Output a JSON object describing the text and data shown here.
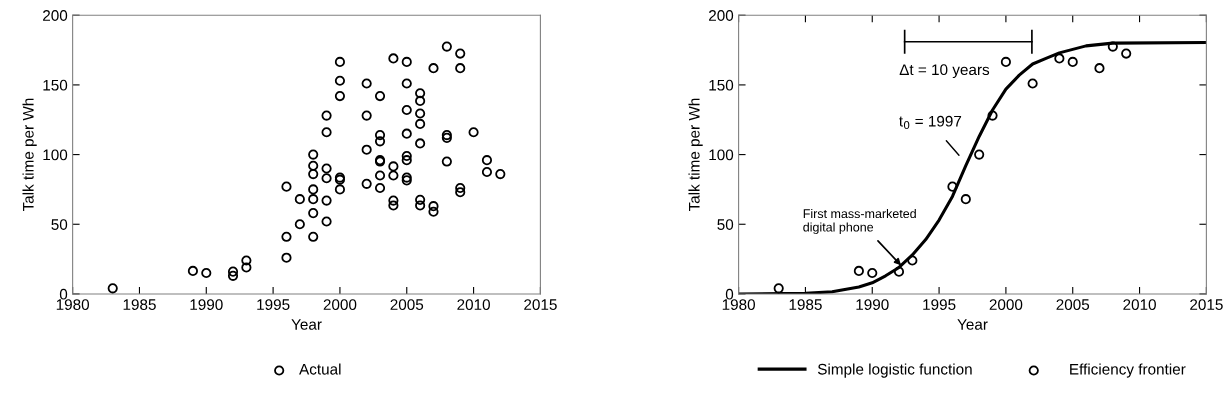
{
  "chart_data": [
    {
      "type": "scatter",
      "xlabel": "Year",
      "ylabel": "Talk time per Wh",
      "xlim": [
        1980,
        2015
      ],
      "ylim": [
        0,
        200
      ],
      "xticks": [
        1980,
        1985,
        1990,
        1995,
        2000,
        2005,
        2010,
        2015
      ],
      "yticks": [
        0,
        50,
        100,
        150,
        200
      ],
      "grid": false,
      "legend": "bottom",
      "marker": "circle",
      "series": [
        {
          "name": "Actual",
          "color": "#000000",
          "x": [
            1983,
            1989,
            1990,
            1992,
            1992,
            1993,
            1993,
            1996,
            1996,
            1996,
            1997,
            1997,
            1998,
            1998,
            1998,
            1998,
            1998,
            1998,
            1998,
            1999,
            1999,
            1999,
            1999,
            1999,
            1999,
            2000,
            2000,
            2000,
            2000,
            2000,
            2000,
            2002,
            2002,
            2002,
            2002,
            2003,
            2003,
            2003,
            2003,
            2003,
            2003,
            2003,
            2004,
            2004,
            2004,
            2004,
            2004,
            2005,
            2005,
            2005,
            2005,
            2005,
            2005,
            2005,
            2005,
            2006,
            2006,
            2006,
            2006,
            2006,
            2006,
            2006,
            2007,
            2007,
            2007,
            2008,
            2008,
            2008,
            2008,
            2009,
            2009,
            2009,
            2009,
            2010,
            2011,
            2011,
            2012
          ],
          "values": [
            4,
            16.5,
            15,
            16,
            13,
            24,
            19,
            77,
            41,
            26,
            68,
            50,
            100,
            92,
            86,
            75,
            68,
            58,
            41,
            128,
            116,
            90,
            83,
            67,
            52,
            166.5,
            153,
            142,
            83.5,
            82,
            75,
            151,
            128,
            103.5,
            79,
            142,
            114,
            109.5,
            96,
            95,
            85,
            76,
            169,
            91.5,
            85,
            67,
            63.5,
            166.5,
            151,
            132,
            115,
            99,
            96,
            83.5,
            81.5,
            144,
            138.5,
            129.5,
            122,
            108,
            67.5,
            63.5,
            162,
            63,
            59,
            177.5,
            114,
            112,
            95,
            172.5,
            162,
            76,
            73,
            116,
            96,
            87.5,
            86
          ]
        }
      ]
    },
    {
      "type": "scatter",
      "xlabel": "Year",
      "ylabel": "Talk time per Wh",
      "xlim": [
        1980,
        2015
      ],
      "ylim": [
        0,
        200
      ],
      "xticks": [
        1980,
        1985,
        1990,
        1995,
        2000,
        2005,
        2010,
        2015
      ],
      "yticks": [
        0,
        50,
        100,
        150,
        200
      ],
      "grid": false,
      "legend": "bottom",
      "annotations": [
        "Δt = 10 years",
        "t$_{0}$ = 1997",
        {
          "text": "First mass-marketed\ndigital phone",
          "x": 1992.3,
          "y": 19
        }
      ],
      "series": [
        {
          "name": "Simple logistic function",
          "type": "line",
          "color": "#000000",
          "line_style": "solid",
          "marker": "none",
          "x": [
            1980,
            1985,
            1987,
            1989,
            1990,
            1991,
            1992,
            1993,
            1994,
            1995,
            1996,
            1997,
            1998,
            1999,
            2000,
            2001,
            2002,
            2003,
            2004,
            2006,
            2008,
            2015
          ],
          "values": [
            0,
            0.5,
            1.5,
            5,
            8,
            13,
            19,
            28,
            39,
            53,
            70,
            92,
            113,
            132,
            147,
            157,
            165,
            169,
            173,
            178,
            180,
            180.5
          ]
        },
        {
          "name": "Efficiency frontier",
          "type": "scatter",
          "color": "#000000",
          "marker": "circle",
          "x": [
            1983,
            1989,
            1990,
            1992,
            1993,
            1996,
            1997,
            1998,
            1999,
            2000,
            2002,
            2004,
            2005,
            2007,
            2008,
            2009
          ],
          "values": [
            4,
            16.5,
            15,
            16,
            24,
            77,
            68,
            100,
            128,
            166.5,
            151,
            169,
            166.5,
            162,
            177.5,
            172.5
          ]
        }
      ]
    }
  ]
}
